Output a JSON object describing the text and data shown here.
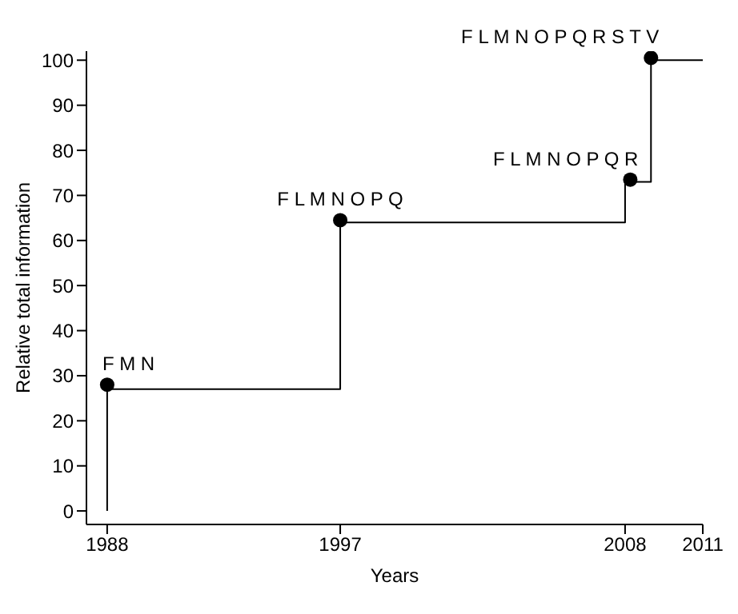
{
  "chart_data": {
    "type": "step",
    "xlabel": "Years",
    "ylabel": "Relative total information",
    "xlim": [
      1987.2,
      2011
    ],
    "xticks": [
      1988,
      1997,
      2008,
      2011
    ],
    "ylim": [
      -3,
      102
    ],
    "yticks": [
      0,
      10,
      20,
      30,
      40,
      50,
      60,
      70,
      80,
      90,
      100
    ],
    "grid": false,
    "series": [
      {
        "color": "#000000",
        "marker": "none",
        "x": [
          1988,
          1988,
          1997,
          2008,
          2009,
          2011
        ],
        "values": [
          0,
          27,
          64,
          73,
          100,
          100
        ]
      },
      {
        "type": "scatter",
        "color": "#000000",
        "marker": "circle",
        "x": [
          1988,
          1997,
          2008.2,
          2009
        ],
        "values": [
          28,
          64.5,
          73.5,
          100.5
        ]
      }
    ],
    "annotations": [
      {
        "text": "F M N",
        "x": 1988,
        "y": 28
      },
      {
        "text": "F L M N O P Q",
        "x": 1997,
        "y": 64.5
      },
      {
        "text": "F L M N O P Q R",
        "x": 2008.2,
        "y": 73.5
      },
      {
        "text": "F L M N O P Q R S T V",
        "x": 2009,
        "y": 100.5
      }
    ]
  }
}
